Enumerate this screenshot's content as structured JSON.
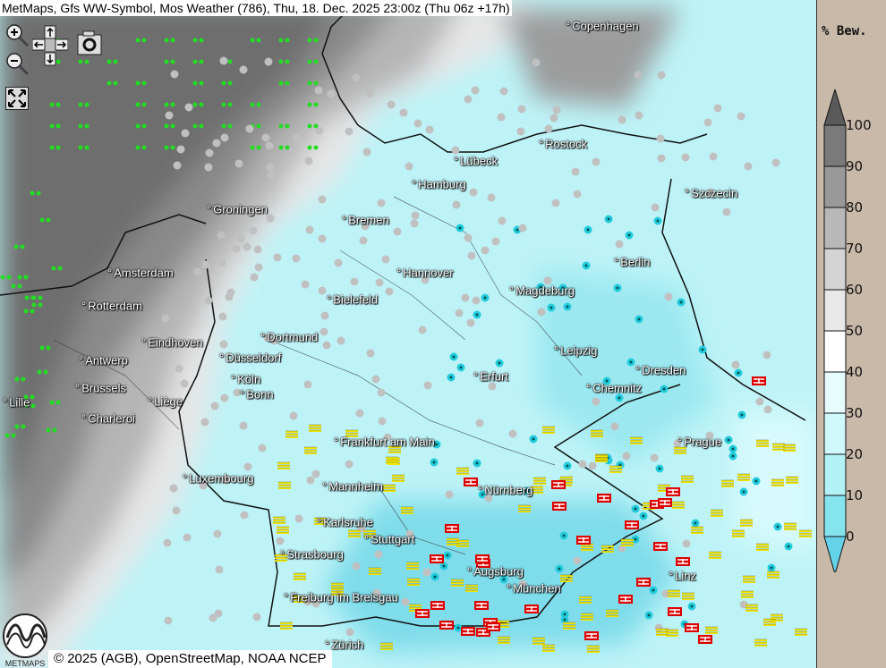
{
  "title": "MetMaps, Gfs WW-Symbol, Mos Weather (786), Thu, 18. Dec. 2025 23:00z (Thu 06z +17h)",
  "controls": {
    "zoom_in_icon": "zoom-in-icon",
    "zoom_out_icon": "zoom-out-icon",
    "pan_icon": "pan-arrows-icon",
    "camera_icon": "camera-icon",
    "fullscreen_icon": "fullscreen-icon"
  },
  "cities": [
    "Copenhagen",
    "Rostock",
    "Lübeck",
    "Hamburg",
    "Szczecin",
    "Groningen",
    "Bremen",
    "Berlin",
    "Amsterdam",
    "Hannover",
    "Magdeburg",
    "Bielefeld",
    "Rotterdam",
    "Dortmund",
    "Eindhoven",
    "Leipzig",
    "Antwerp",
    "Düsseldorf",
    "Dresden",
    "Erfurt",
    "Köln",
    "Brussels",
    "Chemnitz",
    "Bonn",
    "Liège",
    "Lille",
    "Charleroi",
    "Frankfurt am Main",
    "Prague",
    "Luxembourg",
    "Mannheim",
    "Nürnberg",
    "Karlsruhe",
    "Stuttgart",
    "Strasbourg",
    "Augsburg",
    "Linz",
    "München",
    "Freiburg im Breisgau",
    "Zürich"
  ],
  "legend": {
    "title": "% Bew.",
    "labels": [
      "100",
      "90",
      "80",
      "70",
      "60",
      "50",
      "40",
      "30",
      "20",
      "10",
      "0"
    ],
    "colors": [
      "#5a5a5a",
      "#7a7a7a",
      "#999999",
      "#b8b8b8",
      "#d4d4d4",
      "#e8e8e8",
      "#ffffff",
      "#e6fcfd",
      "#cff8fa",
      "#b2f1f5",
      "#85e4ee",
      "#64d3ea"
    ]
  },
  "symbol_colors": {
    "drizzle": "#22dd22",
    "cloud": "#c0c0c0",
    "partly": "#c0c0c0",
    "fog": "#f2e600",
    "freezing": "#dd0000",
    "shower": "#22ccdd"
  },
  "copyright": "© 2025 (AGB), OpenStreetMap, NOAA NCEP",
  "logo_text": "METMAPS"
}
